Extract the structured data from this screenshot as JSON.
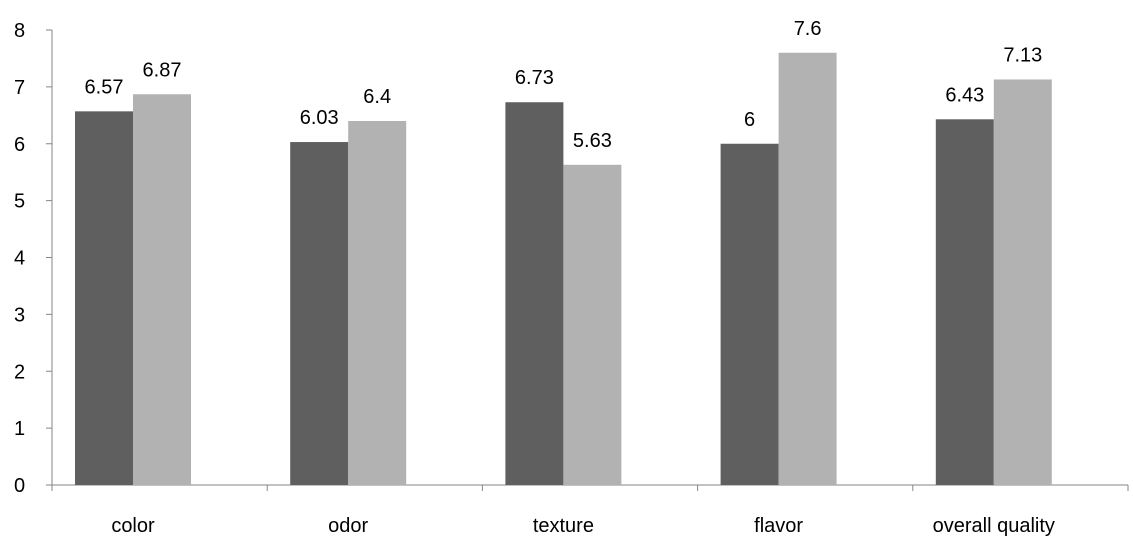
{
  "chart_data": {
    "type": "bar",
    "categories": [
      "color",
      "odor",
      "texture",
      "flavor",
      "overall quality"
    ],
    "series": [
      {
        "values": [
          6.57,
          6.03,
          6.73,
          6,
          6.43
        ],
        "color": "#5f5f5f"
      },
      {
        "values": [
          6.87,
          6.4,
          5.63,
          7.6,
          7.13
        ],
        "color": "#b2b2b2"
      }
    ],
    "data_labels": [
      [
        "6.57",
        "6.03",
        "6.73",
        "6",
        "6.43"
      ],
      [
        "6.87",
        "6.4",
        "5.63",
        "7.6",
        "7.13"
      ]
    ],
    "y_ticks": [
      "0",
      "1",
      "2",
      "3",
      "4",
      "5",
      "6",
      "7",
      "8"
    ],
    "ylim": [
      0,
      8
    ],
    "grid": false,
    "legend": "none",
    "axis_color": "#868686"
  }
}
